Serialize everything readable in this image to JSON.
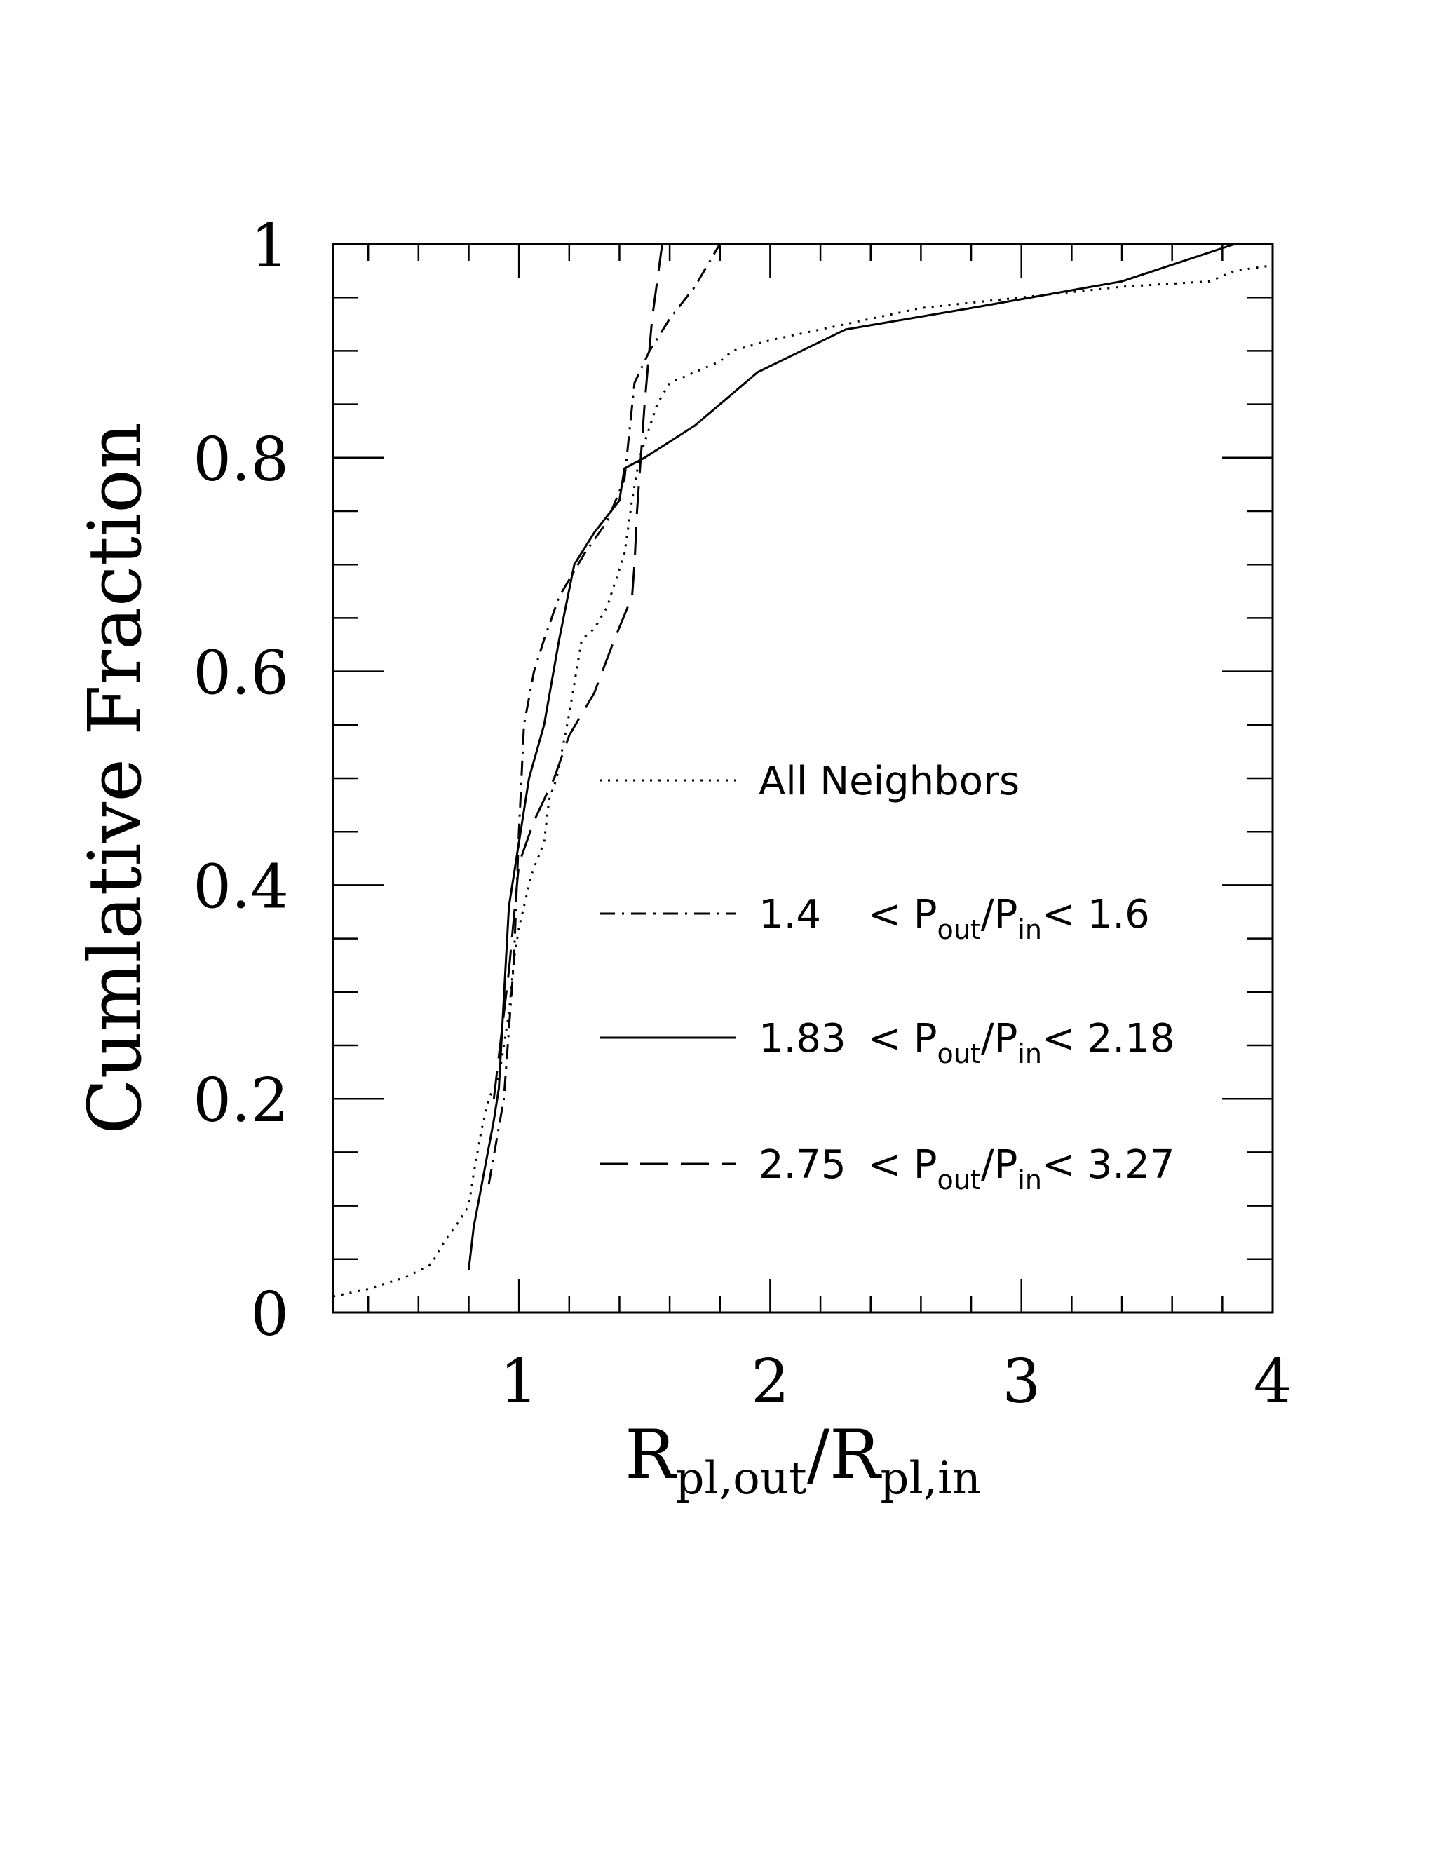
{
  "chart_data": {
    "type": "line",
    "ylabel": "Cumlative Fraction",
    "xlabel": {
      "base": "R",
      "sub1": "pl,out",
      "slash": "/",
      "base2": "R",
      "sub2": "pl,in"
    },
    "xlim": [
      0.26,
      4.0
    ],
    "ylim": [
      0,
      1
    ],
    "x_tick_labels": [
      "1",
      "2",
      "3",
      "4"
    ],
    "y_tick_labels": [
      "0",
      "0.2",
      "0.4",
      "0.6",
      "0.8",
      "1"
    ],
    "grid": false,
    "legend_position": "right",
    "series": [
      {
        "name": "All Neighbors",
        "style": "dotted",
        "points": [
          [
            0.26,
            0.015
          ],
          [
            0.4,
            0.022
          ],
          [
            0.55,
            0.033
          ],
          [
            0.65,
            0.045
          ],
          [
            0.7,
            0.065
          ],
          [
            0.76,
            0.085
          ],
          [
            0.8,
            0.1
          ],
          [
            0.82,
            0.13
          ],
          [
            0.85,
            0.17
          ],
          [
            0.88,
            0.2
          ],
          [
            0.92,
            0.22
          ],
          [
            0.96,
            0.28
          ],
          [
            0.98,
            0.33
          ],
          [
            1.0,
            0.36
          ],
          [
            1.05,
            0.41
          ],
          [
            1.1,
            0.44
          ],
          [
            1.12,
            0.48
          ],
          [
            1.15,
            0.5
          ],
          [
            1.2,
            0.56
          ],
          [
            1.25,
            0.63
          ],
          [
            1.3,
            0.64
          ],
          [
            1.35,
            0.66
          ],
          [
            1.42,
            0.71
          ],
          [
            1.45,
            0.76
          ],
          [
            1.48,
            0.8
          ],
          [
            1.55,
            0.85
          ],
          [
            1.6,
            0.87
          ],
          [
            1.7,
            0.88
          ],
          [
            1.8,
            0.89
          ],
          [
            1.85,
            0.9
          ],
          [
            2.0,
            0.91
          ],
          [
            2.3,
            0.925
          ],
          [
            2.6,
            0.94
          ],
          [
            3.0,
            0.95
          ],
          [
            3.4,
            0.96
          ],
          [
            3.75,
            0.965
          ],
          [
            3.85,
            0.975
          ],
          [
            4.0,
            0.98
          ]
        ]
      },
      {
        "name": "1.4   < Pout/Pin< 1.6",
        "label_parts": [
          "1.4",
          "<",
          "P",
          "out",
          "/P",
          "in",
          "<",
          "1.6"
        ],
        "style": "dashdot",
        "points": [
          [
            0.88,
            0.12
          ],
          [
            0.94,
            0.2
          ],
          [
            0.98,
            0.33
          ],
          [
            1.0,
            0.45
          ],
          [
            1.02,
            0.55
          ],
          [
            1.06,
            0.6
          ],
          [
            1.1,
            0.63
          ],
          [
            1.16,
            0.67
          ],
          [
            1.26,
            0.71
          ],
          [
            1.35,
            0.74
          ],
          [
            1.42,
            0.78
          ],
          [
            1.46,
            0.87
          ],
          [
            1.52,
            0.9
          ],
          [
            1.6,
            0.93
          ],
          [
            1.7,
            0.96
          ],
          [
            1.8,
            1.0
          ]
        ]
      },
      {
        "name": "1.83 < Pout/Pin< 2.18",
        "label_parts": [
          "1.83",
          "<",
          "P",
          "out",
          "/P",
          "in",
          "<",
          "2.18"
        ],
        "style": "solid",
        "points": [
          [
            0.8,
            0.04
          ],
          [
            0.82,
            0.08
          ],
          [
            0.86,
            0.13
          ],
          [
            0.9,
            0.18
          ],
          [
            0.92,
            0.21
          ],
          [
            0.96,
            0.38
          ],
          [
            1.0,
            0.44
          ],
          [
            1.04,
            0.5
          ],
          [
            1.1,
            0.55
          ],
          [
            1.16,
            0.63
          ],
          [
            1.22,
            0.7
          ],
          [
            1.3,
            0.73
          ],
          [
            1.4,
            0.76
          ],
          [
            1.42,
            0.79
          ],
          [
            1.5,
            0.8
          ],
          [
            1.7,
            0.83
          ],
          [
            1.95,
            0.88
          ],
          [
            2.3,
            0.92
          ],
          [
            2.8,
            0.94
          ],
          [
            3.4,
            0.965
          ],
          [
            3.85,
            1.0
          ]
        ]
      },
      {
        "name": "2.75 < Pout/Pin< 3.27",
        "label_parts": [
          "2.75",
          "<",
          "P",
          "out",
          "/P",
          "in",
          "<",
          "3.27"
        ],
        "style": "dashed",
        "points": [
          [
            0.9,
            0.2
          ],
          [
            0.96,
            0.32
          ],
          [
            1.0,
            0.42
          ],
          [
            1.06,
            0.46
          ],
          [
            1.14,
            0.5
          ],
          [
            1.2,
            0.54
          ],
          [
            1.3,
            0.58
          ],
          [
            1.38,
            0.63
          ],
          [
            1.45,
            0.67
          ],
          [
            1.46,
            0.7
          ],
          [
            1.47,
            0.75
          ],
          [
            1.5,
            0.85
          ],
          [
            1.53,
            0.93
          ],
          [
            1.57,
            1.0
          ]
        ]
      }
    ]
  }
}
